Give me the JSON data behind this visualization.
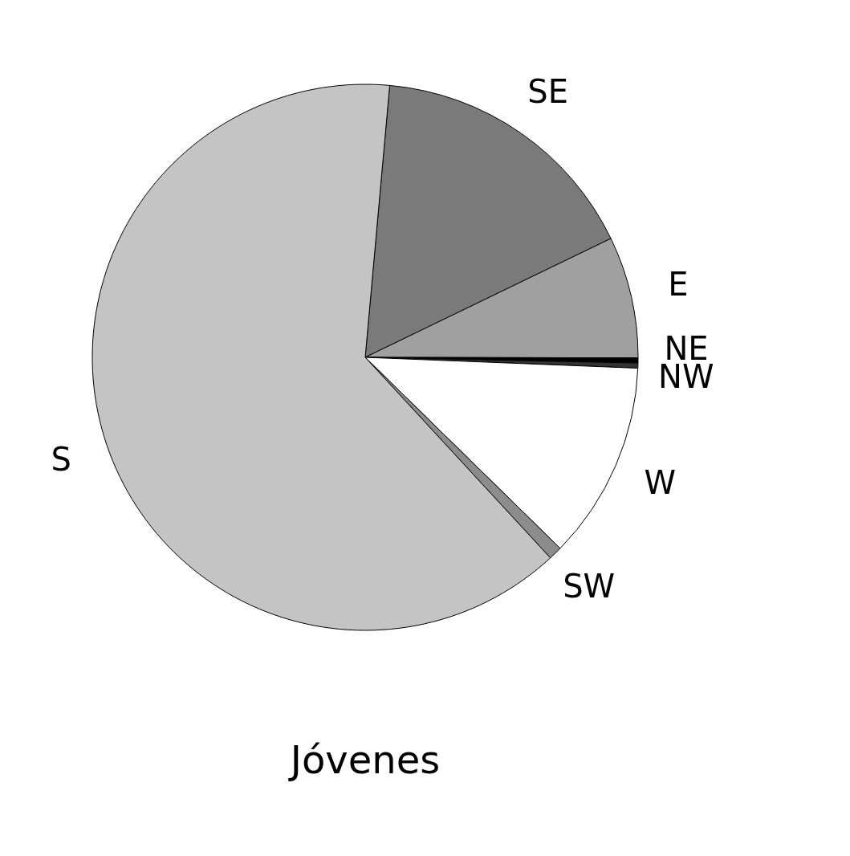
{
  "chart_data": {
    "type": "pie",
    "title": "Jóvenes",
    "categories": [
      "SE",
      "E",
      "NE",
      "NW",
      "W",
      "SW",
      "S"
    ],
    "values": [
      16.4,
      7.2,
      0.3,
      0.3,
      11.7,
      0.8,
      63.3
    ],
    "colors": [
      "#7a7a7a",
      "#a0a0a0",
      "#000000",
      "#333333",
      "#ffffff",
      "#8c8c8c",
      "#c4c4c4"
    ],
    "legend": false
  }
}
